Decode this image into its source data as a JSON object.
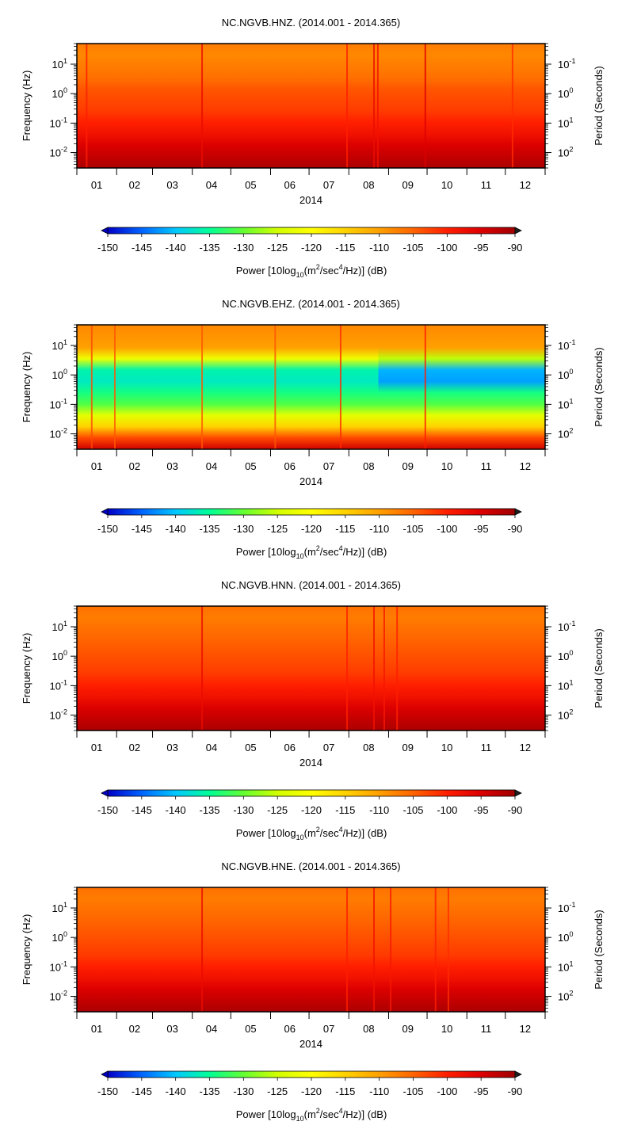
{
  "chart_data": [
    {
      "type": "heatmap",
      "title": "NC.NGVB.HNZ. (2014.001 - 2014.365)",
      "xlabel": "2014",
      "ylabel": "Frequency (Hz)",
      "ylabel_right": "Period (Seconds)",
      "x_ticks": [
        "01",
        "02",
        "03",
        "04",
        "05",
        "06",
        "07",
        "08",
        "09",
        "10",
        "11",
        "12"
      ],
      "y_ticks": [
        {
          "base": "10",
          "exp": "1"
        },
        {
          "base": "10",
          "exp": "0"
        },
        {
          "base": "10",
          "exp": "-1"
        },
        {
          "base": "10",
          "exp": "-2"
        }
      ],
      "y2_ticks": [
        {
          "base": "10",
          "exp": "-1"
        },
        {
          "base": "10",
          "exp": "0"
        },
        {
          "base": "10",
          "exp": "1"
        },
        {
          "base": "10",
          "exp": "2"
        }
      ],
      "y_scale": "log",
      "ylim_hz": [
        0.003,
        50
      ],
      "xlim_day": [
        1,
        365
      ],
      "profile_db": [
        -107,
        -108,
        -107,
        -106,
        -104,
        -103,
        -102,
        -100,
        -98,
        -95,
        -93,
        -91
      ],
      "lines": [
        {
          "day": 8,
          "db": -100
        },
        {
          "day": 98,
          "db": -97
        },
        {
          "day": 211,
          "db": -100
        },
        {
          "day": 232,
          "db": -97
        },
        {
          "day": 235,
          "db": -98
        },
        {
          "day": 272,
          "db": -95
        },
        {
          "day": 340,
          "db": -101
        }
      ],
      "colorbar": {
        "ticks": [
          "-150",
          "-145",
          "-140",
          "-135",
          "-130",
          "-125",
          "-120",
          "-115",
          "-110",
          "-105",
          "-100",
          "-95",
          "-90"
        ],
        "label_prefix": "Power [10log",
        "label_sub": "10",
        "label_mid": "(m",
        "label_sup1": "2",
        "label_mid2": "/sec",
        "label_sup2": "4",
        "label_suffix": "/Hz)] (dB)"
      }
    },
    {
      "type": "heatmap",
      "title": "NC.NGVB.EHZ. (2014.001 - 2014.365)",
      "xlabel": "2014",
      "ylabel": "Frequency (Hz)",
      "ylabel_right": "Period (Seconds)",
      "x_ticks": [
        "01",
        "02",
        "03",
        "04",
        "05",
        "06",
        "07",
        "08",
        "09",
        "10",
        "11",
        "12"
      ],
      "y_ticks": [
        {
          "base": "10",
          "exp": "1"
        },
        {
          "base": "10",
          "exp": "0"
        },
        {
          "base": "10",
          "exp": "-1"
        },
        {
          "base": "10",
          "exp": "-2"
        }
      ],
      "y2_ticks": [
        {
          "base": "10",
          "exp": "-1"
        },
        {
          "base": "10",
          "exp": "0"
        },
        {
          "base": "10",
          "exp": "1"
        },
        {
          "base": "10",
          "exp": "2"
        }
      ],
      "y_scale": "log",
      "ylim_hz": [
        0.003,
        50
      ],
      "xlim_day": [
        1,
        365
      ],
      "profile_db": [
        -108,
        -109,
        -110,
        -122,
        -136,
        -137,
        -134,
        -131,
        -123,
        -115,
        -103,
        -94
      ],
      "profile_db_late": [
        -108,
        -109,
        -110,
        -126,
        -141,
        -142,
        -134,
        -131,
        -123,
        -115,
        -103,
        -94
      ],
      "late_from_day": 236,
      "lines": [
        {
          "day": 12,
          "db": -103
        },
        {
          "day": 30,
          "db": -104
        },
        {
          "day": 98,
          "db": -104
        },
        {
          "day": 155,
          "db": -104
        },
        {
          "day": 206,
          "db": -101
        },
        {
          "day": 272,
          "db": -100
        }
      ],
      "colorbar": {
        "ticks": [
          "-150",
          "-145",
          "-140",
          "-135",
          "-130",
          "-125",
          "-120",
          "-115",
          "-110",
          "-105",
          "-100",
          "-95",
          "-90"
        ],
        "label_prefix": "Power [10log",
        "label_sub": "10",
        "label_mid": "(m",
        "label_sup1": "2",
        "label_mid2": "/sec",
        "label_sup2": "4",
        "label_suffix": "/Hz)] (dB)"
      }
    },
    {
      "type": "heatmap",
      "title": "NC.NGVB.HNN. (2014.001 - 2014.365)",
      "xlabel": "2014",
      "ylabel": "Frequency (Hz)",
      "ylabel_right": "Period (Seconds)",
      "x_ticks": [
        "01",
        "02",
        "03",
        "04",
        "05",
        "06",
        "07",
        "08",
        "09",
        "10",
        "11",
        "12"
      ],
      "y_ticks": [
        {
          "base": "10",
          "exp": "1"
        },
        {
          "base": "10",
          "exp": "0"
        },
        {
          "base": "10",
          "exp": "-1"
        },
        {
          "base": "10",
          "exp": "-2"
        }
      ],
      "y2_ticks": [
        {
          "base": "10",
          "exp": "-1"
        },
        {
          "base": "10",
          "exp": "0"
        },
        {
          "base": "10",
          "exp": "1"
        },
        {
          "base": "10",
          "exp": "2"
        }
      ],
      "y_scale": "log",
      "ylim_hz": [
        0.003,
        50
      ],
      "xlim_day": [
        1,
        365
      ],
      "profile_db": [
        -106,
        -107,
        -106,
        -105,
        -104,
        -103,
        -102,
        -100,
        -98,
        -95,
        -93,
        -91
      ],
      "lines": [
        {
          "day": 98,
          "db": -97
        },
        {
          "day": 211,
          "db": -100
        },
        {
          "day": 232,
          "db": -98
        },
        {
          "day": 240,
          "db": -99
        },
        {
          "day": 250,
          "db": -100
        }
      ],
      "colorbar": {
        "ticks": [
          "-150",
          "-145",
          "-140",
          "-135",
          "-130",
          "-125",
          "-120",
          "-115",
          "-110",
          "-105",
          "-100",
          "-95",
          "-90"
        ],
        "label_prefix": "Power [10log",
        "label_sub": "10",
        "label_mid": "(m",
        "label_sup1": "2",
        "label_mid2": "/sec",
        "label_sup2": "4",
        "label_suffix": "/Hz)] (dB)"
      }
    },
    {
      "type": "heatmap",
      "title": "NC.NGVB.HNE. (2014.001 - 2014.365)",
      "xlabel": "2014",
      "ylabel": "Frequency (Hz)",
      "ylabel_right": "Period (Seconds)",
      "x_ticks": [
        "01",
        "02",
        "03",
        "04",
        "05",
        "06",
        "07",
        "08",
        "09",
        "10",
        "11",
        "12"
      ],
      "y_ticks": [
        {
          "base": "10",
          "exp": "1"
        },
        {
          "base": "10",
          "exp": "0"
        },
        {
          "base": "10",
          "exp": "-1"
        },
        {
          "base": "10",
          "exp": "-2"
        }
      ],
      "y2_ticks": [
        {
          "base": "10",
          "exp": "-1"
        },
        {
          "base": "10",
          "exp": "0"
        },
        {
          "base": "10",
          "exp": "1"
        },
        {
          "base": "10",
          "exp": "2"
        }
      ],
      "y_scale": "log",
      "ylim_hz": [
        0.003,
        50
      ],
      "xlim_day": [
        1,
        365
      ],
      "profile_db": [
        -106,
        -107,
        -106,
        -105,
        -104,
        -103,
        -102,
        -100,
        -98,
        -95,
        -93,
        -91
      ],
      "lines": [
        {
          "day": 98,
          "db": -97
        },
        {
          "day": 211,
          "db": -100
        },
        {
          "day": 232,
          "db": -98
        },
        {
          "day": 245,
          "db": -99
        },
        {
          "day": 280,
          "db": -100
        },
        {
          "day": 290,
          "db": -101
        }
      ],
      "colorbar": {
        "ticks": [
          "-150",
          "-145",
          "-140",
          "-135",
          "-130",
          "-125",
          "-120",
          "-115",
          "-110",
          "-105",
          "-100",
          "-95",
          "-90"
        ],
        "label_prefix": "Power [10log",
        "label_sub": "10",
        "label_mid": "(m",
        "label_sup1": "2",
        "label_mid2": "/sec",
        "label_sup2": "4",
        "label_suffix": "/Hz)] (dB)"
      }
    }
  ],
  "colormap": [
    "#0000c8",
    "#0064ff",
    "#00c8ff",
    "#00ff96",
    "#64ff32",
    "#d2ff00",
    "#ffff00",
    "#ffd200",
    "#ffa000",
    "#ff6400",
    "#ff1e00",
    "#dc0000",
    "#a00000"
  ]
}
